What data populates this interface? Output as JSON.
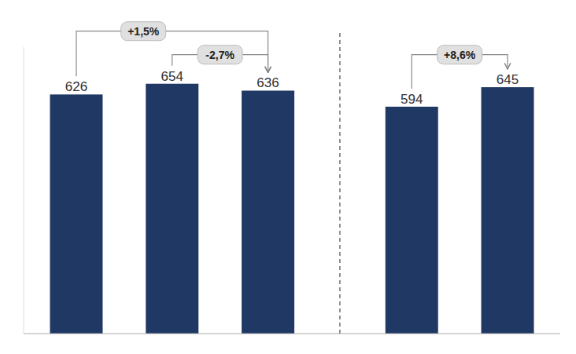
{
  "chart_data": {
    "type": "bar",
    "categories": [
      null,
      null,
      null,
      null,
      null
    ],
    "values": [
      626,
      654,
      636,
      594,
      645
    ],
    "color": "#1f3864",
    "ylim": [
      0,
      750
    ],
    "grid": false,
    "tick_labels": false,
    "data_labels": true,
    "annotations": [
      "+1,5%",
      "-2,7%",
      "+8,6%"
    ]
  }
}
